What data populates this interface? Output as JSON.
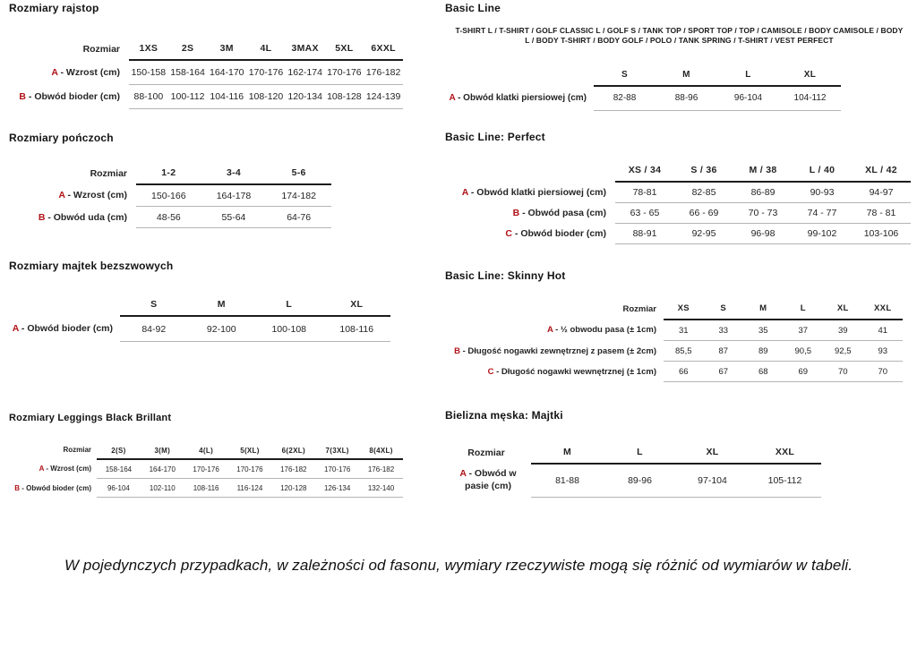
{
  "page": {
    "accent_color": "#b11217",
    "footer_note": "W pojedynczych przypadkach, w zależności od fasonu, wymiary rzeczywiste mogą się różnić od wymiarów w tabeli."
  },
  "tables": {
    "rajstopy": {
      "title": "Rozmiary rajstop",
      "corner": "Rozmiar",
      "columns": [
        "1XS",
        "2S",
        "3M",
        "4L",
        "3MAX",
        "5XL",
        "6XXL"
      ],
      "rows": [
        {
          "letter": "A",
          "label": "- Wzrost (cm)",
          "values": [
            "150-158",
            "158-164",
            "164-170",
            "170-176",
            "162-174",
            "170-176",
            "176-182"
          ]
        },
        {
          "letter": "B",
          "label": "- Obwód bioder (cm)",
          "values": [
            "88-100",
            "100-112",
            "104-116",
            "108-120",
            "120-134",
            "108-128",
            "124-139"
          ]
        }
      ]
    },
    "ponczochy": {
      "title": "Rozmiary pończoch",
      "corner": "Rozmiar",
      "columns": [
        "1-2",
        "3-4",
        "5-6"
      ],
      "rows": [
        {
          "letter": "A",
          "label": "- Wzrost (cm)",
          "values": [
            "150-166",
            "164-178",
            "174-182"
          ]
        },
        {
          "letter": "B",
          "label": "- Obwód uda (cm)",
          "values": [
            "48-56",
            "55-64",
            "64-76"
          ]
        }
      ]
    },
    "majtki_bezszwowe": {
      "title": "Rozmiary majtek bezszwowych",
      "corner": "",
      "columns": [
        "S",
        "M",
        "L",
        "XL"
      ],
      "rows": [
        {
          "letter": "A",
          "label": "- Obwód bioder (cm)",
          "values": [
            "84-92",
            "92-100",
            "100-108",
            "108-116"
          ]
        }
      ]
    },
    "leggings": {
      "title": "Rozmiary Leggings Black Brillant",
      "corner": "Rozmiar",
      "columns": [
        "2(S)",
        "3(M)",
        "4(L)",
        "5(XL)",
        "6(2XL)",
        "7(3XL)",
        "8(4XL)"
      ],
      "rows": [
        {
          "letter": "A",
          "label": "- Wzrost (cm)",
          "values": [
            "158-164",
            "164-170",
            "170-176",
            "170-176",
            "176-182",
            "170-176",
            "176-182"
          ]
        },
        {
          "letter": "B",
          "label": "- Obwód bioder (cm)",
          "values": [
            "96-104",
            "102-110",
            "108-116",
            "116-124",
            "120-128",
            "126-134",
            "132-140"
          ]
        }
      ]
    },
    "basic_line": {
      "title": "Basic Line",
      "subtitle": "T-SHIRT L / T-SHIRT / GOLF CLASSIC L / GOLF S / TANK TOP / SPORT TOP / TOP / CAMISOLE / BODY CAMISOLE / BODY L / BODY T-SHIRT / BODY GOLF / POLO / TANK SPRING / T-SHIRT / VEST PERFECT",
      "corner": "",
      "columns": [
        "S",
        "M",
        "L",
        "XL"
      ],
      "rows": [
        {
          "letter": "A",
          "label": "- Obwód klatki piersiowej (cm)",
          "values": [
            "82-88",
            "88-96",
            "96-104",
            "104-112"
          ]
        }
      ]
    },
    "basic_line_perfect": {
      "title": "Basic Line: Perfect",
      "corner": "",
      "columns": [
        "XS / 34",
        "S / 36",
        "M / 38",
        "L / 40",
        "XL / 42"
      ],
      "rows": [
        {
          "letter": "A",
          "label": "- Obwód klatki piersiowej (cm)",
          "values": [
            "78-81",
            "82-85",
            "86-89",
            "90-93",
            "94-97"
          ]
        },
        {
          "letter": "B",
          "label": "- Obwód pasa (cm)",
          "values": [
            "63 - 65",
            "66 - 69",
            "70 - 73",
            "74 - 77",
            "78 - 81"
          ]
        },
        {
          "letter": "C",
          "label": "- Obwód bioder (cm)",
          "values": [
            "88-91",
            "92-95",
            "96-98",
            "99-102",
            "103-106"
          ]
        }
      ]
    },
    "basic_line_skinny_hot": {
      "title": "Basic Line: Skinny Hot",
      "corner": "Rozmiar",
      "columns": [
        "XS",
        "S",
        "M",
        "L",
        "XL",
        "XXL"
      ],
      "rows": [
        {
          "letter": "A",
          "label": "- ½ obwodu pasa (± 1cm)",
          "values": [
            "31",
            "33",
            "35",
            "37",
            "39",
            "41"
          ]
        },
        {
          "letter": "B",
          "label": "- Długość nogawki zewnętrznej z pasem (± 2cm)",
          "values": [
            "85,5",
            "87",
            "89",
            "90,5",
            "92,5",
            "93"
          ]
        },
        {
          "letter": "C",
          "label": "- Długość nogawki wewnętrznej (± 1cm)",
          "values": [
            "66",
            "67",
            "68",
            "69",
            "70",
            "70"
          ]
        }
      ]
    },
    "bielizna_meska": {
      "title": "Bielizna męska: Majtki",
      "corner": "Rozmiar",
      "columns": [
        "M",
        "L",
        "XL",
        "XXL"
      ],
      "rows": [
        {
          "letter": "A",
          "label": "- Obwód w pasie (cm)",
          "values": [
            "81-88",
            "89-96",
            "97-104",
            "105-112"
          ]
        }
      ]
    }
  }
}
